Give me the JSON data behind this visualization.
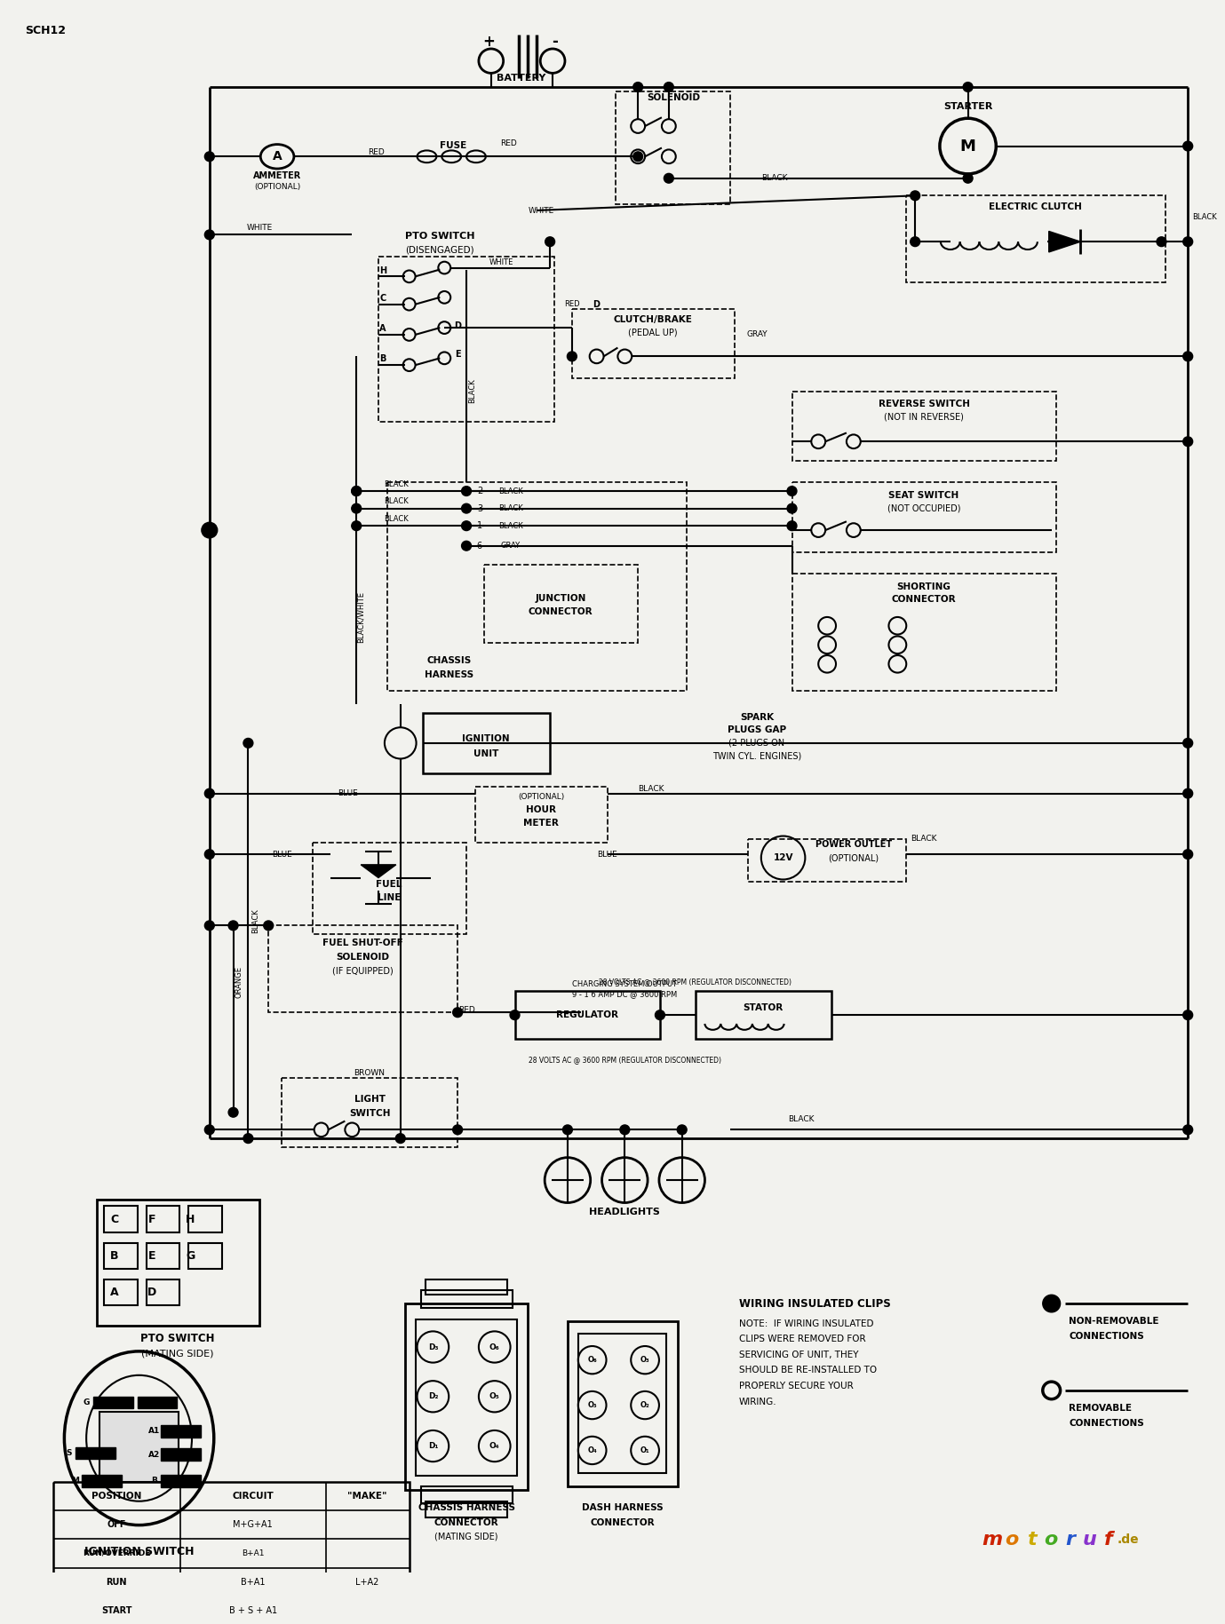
{
  "title": "SCH12",
  "bg_color": "#f2f2ee",
  "line_color": "#000000",
  "ignition_table": {
    "headers": [
      "POSITION",
      "CIRCUIT",
      "\"MAKE\""
    ],
    "rows": [
      [
        "OFF",
        "M+G+A1",
        ""
      ],
      [
        "RUN/OVERRIDE",
        "B+A1",
        ""
      ],
      [
        "RUN",
        "B+A1",
        "L+A2"
      ],
      [
        "START",
        "B + S + A1",
        ""
      ]
    ]
  },
  "motoruf_colors": [
    "#cc2200",
    "#dd7700",
    "#ccaa00",
    "#44aa22",
    "#2255cc",
    "#8833cc",
    "#cc2200"
  ],
  "motoruf_text": [
    "m",
    "o",
    "t",
    "o",
    "r",
    "u",
    "f"
  ]
}
